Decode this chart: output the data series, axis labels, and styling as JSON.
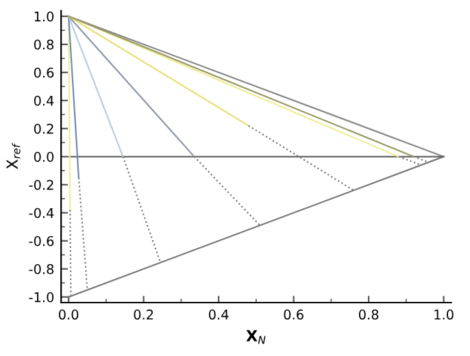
{
  "chart_data": {
    "type": "line",
    "xlabel": "X$_{N}$",
    "ylabel": "X$_{ref}$",
    "xlim": [
      -0.02,
      1.02
    ],
    "ylim": [
      -1.04,
      1.04
    ],
    "xticks": [
      {
        "value": 0,
        "label": "0.0"
      },
      0.2,
      0.4,
      0.6,
      0.8,
      {
        "value": 1,
        "label": "1.0"
      }
    ],
    "yticks": [
      {
        "value": -1,
        "label": "-1.0"
      },
      -0.8,
      -0.6,
      -0.4,
      -0.2,
      {
        "value": 0,
        "label": "0.0"
      },
      0.2,
      0.4,
      0.6,
      0.8,
      {
        "value": 1,
        "label": "1.0"
      }
    ],
    "grid": false,
    "legend": false,
    "marker": "none",
    "series": [
      {
        "color": "#888888",
        "x": [
          0,
          1
        ],
        "values": [
          1,
          0
        ],
        "line_style": "solid"
      },
      {
        "color": "#777777",
        "x": [
          0,
          1
        ],
        "values": [
          -1,
          0
        ],
        "line_style": "solid"
      },
      {
        "color": "#666666",
        "x": [
          0,
          1
        ],
        "values": [
          0,
          0
        ],
        "line_style": "solid"
      },
      {
        "color": "#eeee99",
        "x": [
          0,
          0.004
        ],
        "values": [
          1,
          -0.38
        ],
        "line_style": "solid"
      },
      {
        "color": "#777777",
        "x": [
          0.004,
          0.006
        ],
        "values": [
          -0.38,
          -0.99
        ],
        "line_style": "dotted"
      },
      {
        "color": "#6d8cb0",
        "x": [
          0,
          0.027
        ],
        "values": [
          1,
          -0.15
        ],
        "line_style": "solid"
      },
      {
        "color": "#777777",
        "x": [
          0.027,
          0.05
        ],
        "values": [
          -0.15,
          -0.95
        ],
        "line_style": "dotted"
      },
      {
        "color": "#b8cce0",
        "x": [
          0,
          0.145
        ],
        "values": [
          1,
          0
        ],
        "line_style": "solid"
      },
      {
        "color": "#777777",
        "x": [
          0.145,
          0.245
        ],
        "values": [
          0,
          -0.755
        ],
        "line_style": "dotted"
      },
      {
        "color": "#9098a8",
        "x": [
          0,
          0.335
        ],
        "values": [
          1,
          0
        ],
        "line_style": "solid"
      },
      {
        "color": "#777777",
        "x": [
          0.335,
          0.51
        ],
        "values": [
          0,
          -0.49
        ],
        "line_style": "dotted"
      },
      {
        "color": "#e8e07a",
        "x": [
          0,
          0.48
        ],
        "values": [
          1,
          0.22
        ],
        "line_style": "solid"
      },
      {
        "color": "#777777",
        "x": [
          0.48,
          0.76
        ],
        "values": [
          0.22,
          -0.24
        ],
        "line_style": "dotted"
      },
      {
        "color": "#eeee99",
        "x": [
          0,
          0.88
        ],
        "values": [
          1,
          0
        ],
        "line_style": "solid"
      },
      {
        "color": "#777777",
        "x": [
          0.88,
          0.94
        ],
        "values": [
          0,
          -0.06
        ],
        "line_style": "dotted"
      },
      {
        "color": "#999966",
        "x": [
          0,
          0.92
        ],
        "values": [
          1,
          0
        ],
        "line_style": "solid"
      },
      {
        "color": "#777777",
        "x": [
          0.92,
          0.96
        ],
        "values": [
          0,
          -0.04
        ],
        "line_style": "dotted"
      }
    ]
  }
}
